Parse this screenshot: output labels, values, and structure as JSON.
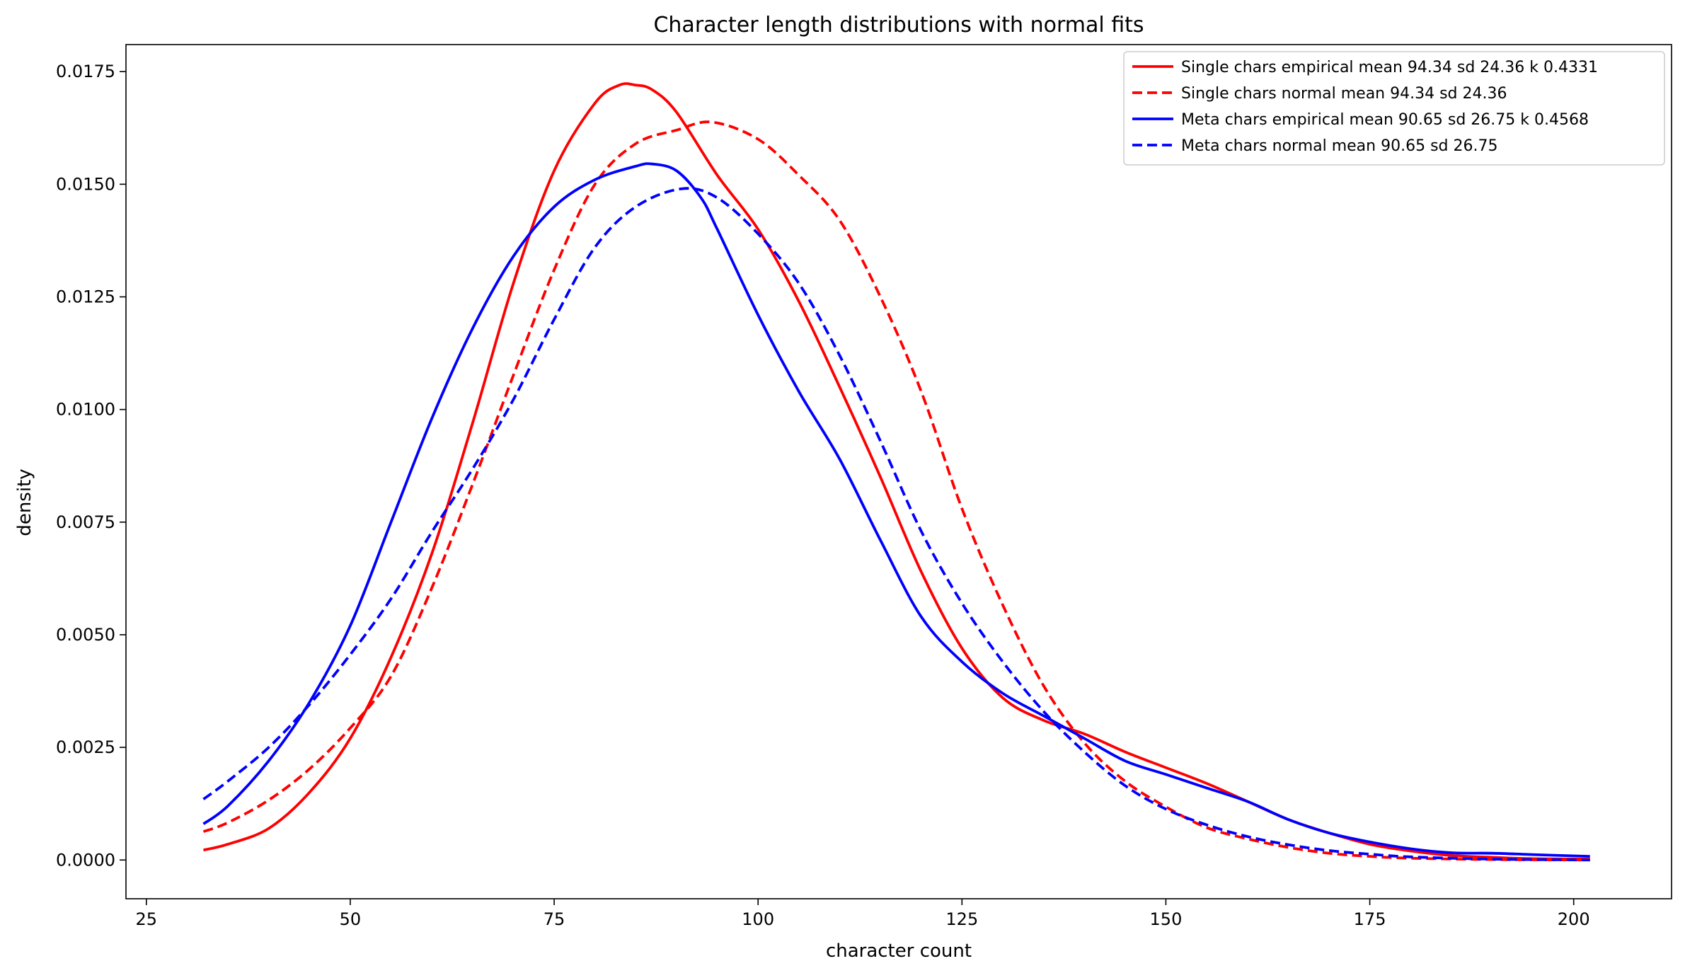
{
  "chart_data": {
    "type": "line",
    "title": "Character length distributions with normal fits",
    "xlabel": "character count",
    "ylabel": "density",
    "xlim": [
      22.5,
      212
    ],
    "ylim": [
      -0.00086,
      0.0181
    ],
    "xticks": [
      25,
      50,
      75,
      100,
      125,
      150,
      175,
      200
    ],
    "xtick_labels": [
      "25",
      "50",
      "75",
      "100",
      "125",
      "150",
      "175",
      "200"
    ],
    "yticks": [
      0,
      0.0025,
      0.005,
      0.0075,
      0.01,
      0.0125,
      0.015,
      0.0175
    ],
    "ytick_labels": [
      "0.0000",
      "0.0025",
      "0.0050",
      "0.0075",
      "0.0100",
      "0.0125",
      "0.0150",
      "0.0175"
    ],
    "grid": false,
    "legend_position": "top-right",
    "series": [
      {
        "name": "Single chars empirical mean 94.34 sd 24.36 k 0.4331",
        "color": "#ff0000",
        "dash": "solid",
        "x": [
          32,
          35,
          40,
          45,
          50,
          55,
          60,
          65,
          70,
          75,
          80,
          83,
          85,
          87,
          90,
          95,
          100,
          105,
          110,
          115,
          120,
          125,
          130,
          135,
          140,
          145,
          150,
          155,
          160,
          165,
          170,
          175,
          180,
          185,
          190,
          195,
          202
        ],
        "y": [
          0.00022,
          0.00035,
          0.0007,
          0.0015,
          0.0027,
          0.0045,
          0.0068,
          0.0097,
          0.0128,
          0.0153,
          0.0168,
          0.0172,
          0.0172,
          0.0171,
          0.0166,
          0.0152,
          0.014,
          0.0124,
          0.0105,
          0.0085,
          0.0064,
          0.0047,
          0.0036,
          0.0031,
          0.0028,
          0.0024,
          0.00205,
          0.0017,
          0.0013,
          0.0009,
          0.0006,
          0.00035,
          0.0002,
          0.0001,
          6e-05,
          3e-05,
          2e-05
        ]
      },
      {
        "name": "Single chars normal mean 94.34 sd 24.36",
        "color": "#ff0000",
        "dash": "dashed",
        "x": [
          32,
          35,
          40,
          45,
          50,
          55,
          60,
          65,
          70,
          75,
          80,
          85,
          90,
          94.34,
          100,
          105,
          110,
          115,
          120,
          125,
          130,
          135,
          140,
          145,
          150,
          155,
          160,
          165,
          170,
          175,
          180,
          190,
          202
        ],
        "y": [
          0.00063,
          0.00083,
          0.00133,
          0.00202,
          0.00293,
          0.00408,
          0.00604,
          0.00834,
          0.01076,
          0.0131,
          0.015,
          0.0159,
          0.0162,
          0.01638,
          0.016,
          0.0152,
          0.0142,
          0.0125,
          0.0104,
          0.0078,
          0.00566,
          0.00387,
          0.0026,
          0.00175,
          0.00118,
          0.00072,
          0.00047,
          0.00028,
          0.00015,
          8e-05,
          4e-05,
          1e-05,
          0.0
        ]
      },
      {
        "name": "Meta chars empirical mean 90.65 sd 26.75 k 0.4568",
        "color": "#0000ff",
        "dash": "solid",
        "x": [
          32,
          35,
          40,
          45,
          50,
          55,
          60,
          65,
          70,
          75,
          80,
          85,
          87,
          90,
          93,
          95,
          100,
          105,
          110,
          115,
          120,
          125,
          130,
          135,
          140,
          145,
          150,
          155,
          160,
          165,
          170,
          175,
          180,
          185,
          190,
          195,
          202
        ],
        "y": [
          0.0008,
          0.0012,
          0.0022,
          0.0035,
          0.0052,
          0.0075,
          0.0098,
          0.0118,
          0.0134,
          0.0145,
          0.0151,
          0.0154,
          0.01545,
          0.0153,
          0.0147,
          0.014,
          0.0121,
          0.0104,
          0.0089,
          0.0071,
          0.0054,
          0.0044,
          0.0037,
          0.0032,
          0.0027,
          0.0022,
          0.0019,
          0.0016,
          0.0013,
          0.0009,
          0.0006,
          0.0004,
          0.00025,
          0.00016,
          0.00015,
          0.00012,
          8e-05
        ]
      },
      {
        "name": "Meta chars normal mean 90.65 sd 26.75",
        "color": "#0000ff",
        "dash": "dashed",
        "x": [
          32,
          35,
          40,
          45,
          50,
          55,
          60,
          65,
          70,
          75,
          80,
          85,
          90.65,
          95,
          100,
          105,
          110,
          115,
          120,
          125,
          130,
          135,
          140,
          145,
          150,
          155,
          160,
          165,
          170,
          175,
          180,
          190,
          202
        ],
        "y": [
          0.00135,
          0.00175,
          0.0025,
          0.00345,
          0.00456,
          0.0058,
          0.00728,
          0.00868,
          0.01022,
          0.012,
          0.0136,
          0.0145,
          0.0149,
          0.0147,
          0.0139,
          0.0128,
          0.0112,
          0.0093,
          0.0073,
          0.0057,
          0.0044,
          0.0033,
          0.0024,
          0.00165,
          0.00113,
          0.00078,
          0.00052,
          0.00034,
          0.00021,
          0.00013,
          7e-05,
          2e-05,
          0.0
        ]
      }
    ]
  }
}
